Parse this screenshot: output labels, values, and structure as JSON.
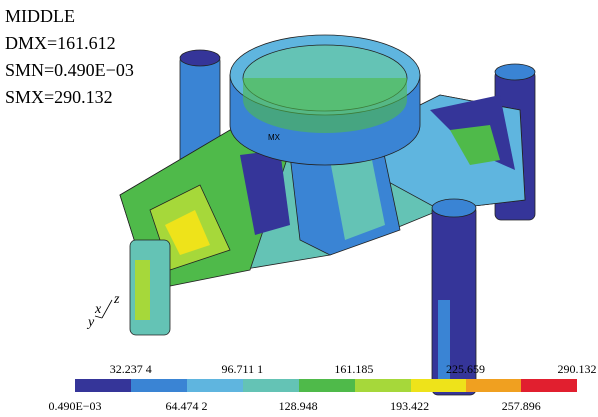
{
  "info": {
    "title": "MIDDLE",
    "dmx": "DMX=161.612",
    "smn": "SMN=0.490E−03",
    "smx": "SMX=290.132"
  },
  "legend": {
    "upper_labels": [
      "32.237 4",
      "96.711 1",
      "161.185",
      "225.659",
      "290.132"
    ],
    "lower_labels": [
      "0.490E−03",
      "64.474 2",
      "128.948",
      "193.422",
      "257.896"
    ]
  },
  "markers": {
    "max": "MX"
  },
  "triad": {
    "x": "x",
    "y": "y",
    "z": "z"
  }
}
